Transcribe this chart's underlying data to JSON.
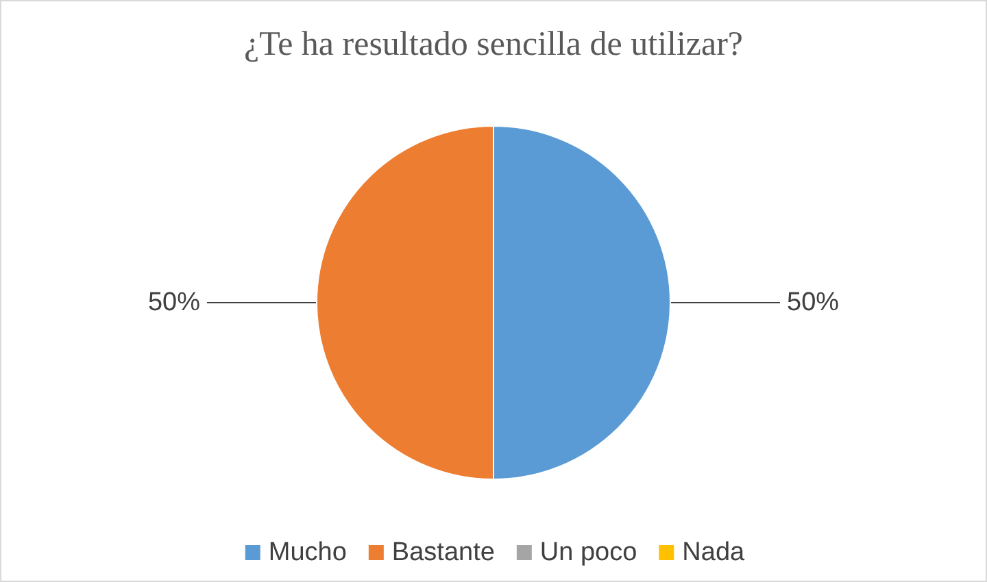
{
  "chart_data": {
    "type": "pie",
    "title": "¿Te ha resultado sencilla de utilizar?",
    "categories": [
      "Mucho",
      "Bastante",
      "Un poco",
      "Nada"
    ],
    "values": [
      50,
      50,
      0,
      0
    ],
    "colors": [
      "#5b9bd5",
      "#ed7d31",
      "#a5a5a5",
      "#ffc000"
    ],
    "value_labels": [
      "50%",
      "50%",
      null,
      null
    ],
    "legend": "bottom"
  }
}
